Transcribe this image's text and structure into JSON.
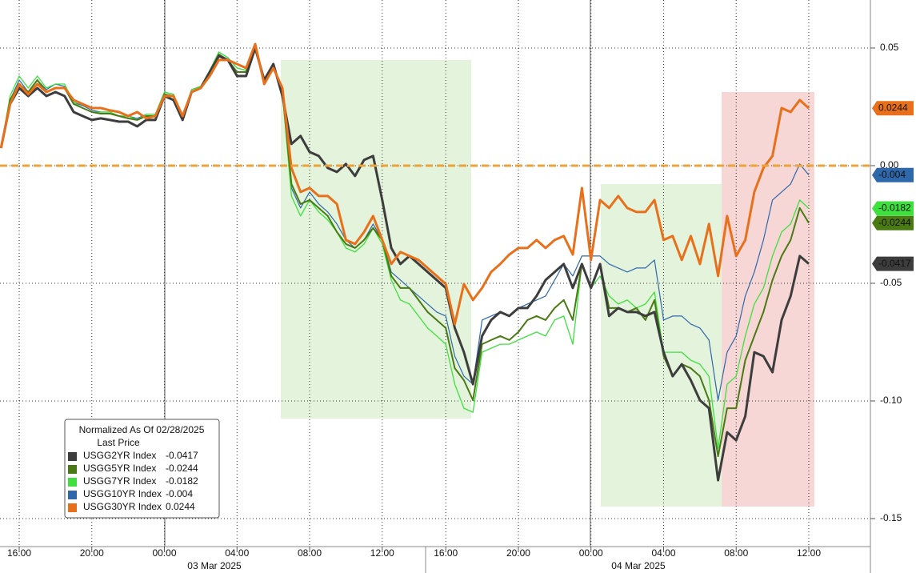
{
  "chart_data": {
    "type": "line",
    "categories": [
      null,
      null,
      "16:00",
      null,
      null,
      null,
      null,
      null,
      null,
      null,
      "20:00",
      null,
      null,
      null,
      null,
      null,
      null,
      null,
      "00:00",
      null,
      null,
      null,
      null,
      null,
      null,
      null,
      "04:00",
      null,
      null,
      null,
      null,
      null,
      null,
      null,
      "08:00",
      null,
      null,
      null,
      null,
      null,
      null,
      null,
      "12:00",
      null,
      null,
      null,
      null,
      null,
      null,
      "16:00",
      null,
      null,
      null,
      null,
      null,
      null,
      null,
      "20:00",
      null,
      null,
      null,
      null,
      null,
      null,
      null,
      "00:00",
      null,
      null,
      null,
      null,
      null,
      null,
      null,
      "04:00",
      null,
      null,
      null,
      null,
      null,
      null,
      null,
      "08:00",
      null,
      null,
      null,
      null,
      null,
      null,
      null,
      "12:00"
    ],
    "x_groups": [
      "03 Mar 2025",
      "04 Mar 2025"
    ],
    "ylim": [
      -0.1619,
      0.0704
    ],
    "yticks": [
      0.05,
      {
        "value": 0,
        "label": "0.00"
      },
      -0.05,
      {
        "value": -0.1,
        "label": "-0.10"
      },
      {
        "value": -0.15,
        "label": "-0.15"
      }
    ],
    "grid": true,
    "reference_line": {
      "value": 0,
      "color": "#eba33a"
    },
    "legend": {
      "title": "Normalized As Of 02/28/2025",
      "subtitle": "Last Price",
      "position": "lower left"
    },
    "series": [
      {
        "name": "USGG2YR Index",
        "color": "#3d3d3d",
        "values": [
          0.0075,
          0.0262,
          0.033,
          0.0296,
          0.033,
          0.0296,
          0.0313,
          0.0296,
          0.0228,
          0.0211,
          0.0194,
          0.0201,
          0.0194,
          0.0187,
          0.0187,
          0.0167,
          0.0194,
          0.0194,
          0.0296,
          0.0279,
          0.0194,
          0.0313,
          0.033,
          0.0398,
          0.0466,
          0.0449,
          0.0381,
          0.0381,
          0.05,
          0.0364,
          0.0432,
          0.0296,
          0.0092,
          0.0126,
          0.0058,
          0.0041,
          -0.001,
          -0.0027,
          0.0007,
          -0.0044,
          0.0024,
          0.0041,
          -0.0146,
          -0.035,
          -0.0418,
          -0.0384,
          -0.0418,
          -0.0452,
          -0.0486,
          -0.052,
          -0.069,
          -0.0793,
          -0.0929,
          -0.0724,
          -0.0656,
          -0.0622,
          -0.0639,
          -0.0605,
          -0.0605,
          -0.0554,
          -0.0486,
          -0.0452,
          -0.0418,
          -0.052,
          -0.0418,
          -0.052,
          -0.0418,
          -0.0639,
          -0.0605,
          -0.0622,
          -0.0622,
          -0.0639,
          -0.0622,
          -0.0793,
          -0.0895,
          -0.0844,
          -0.0912,
          -0.0997,
          -0.1031,
          -0.1337,
          -0.1133,
          -0.1167,
          -0.1065,
          -0.0793,
          -0.081,
          -0.0878,
          -0.0656,
          -0.0554,
          -0.0384,
          -0.0417
        ]
      },
      {
        "name": "USGG5YR Index",
        "color": "#4a7a14",
        "values": [
          0.0075,
          0.0279,
          0.0347,
          0.0313,
          0.0364,
          0.0313,
          0.033,
          0.033,
          0.0262,
          0.0245,
          0.0228,
          0.0221,
          0.0221,
          0.0211,
          0.0201,
          0.0194,
          0.0211,
          0.0211,
          0.0303,
          0.0296,
          0.0211,
          0.0313,
          0.033,
          0.0398,
          0.0473,
          0.0449,
          0.0398,
          0.0398,
          0.05,
          0.0364,
          0.0432,
          0.0313,
          -0.0078,
          -0.0163,
          -0.0146,
          -0.018,
          -0.0214,
          -0.0282,
          -0.0333,
          -0.035,
          -0.0316,
          -0.0265,
          -0.0316,
          -0.0469,
          -0.052,
          -0.052,
          -0.0571,
          -0.0622,
          -0.0656,
          -0.069,
          -0.0861,
          -0.0912,
          -0.0997,
          -0.0759,
          -0.0741,
          -0.0724,
          -0.0741,
          -0.0707,
          -0.0656,
          -0.0639,
          -0.0656,
          -0.0605,
          -0.0571,
          -0.0656,
          -0.0418,
          -0.052,
          -0.0418,
          -0.0605,
          -0.0605,
          -0.0622,
          -0.0605,
          -0.0656,
          -0.0571,
          -0.081,
          -0.0895,
          -0.0844,
          -0.0861,
          -0.0895,
          -0.0997,
          -0.1235,
          -0.1031,
          -0.1031,
          -0.0827,
          -0.0724,
          -0.0622,
          -0.0486,
          -0.0384,
          -0.0316,
          -0.018,
          -0.0244
        ]
      },
      {
        "name": "USGG7YR Index",
        "color": "#3ee03e",
        "values": [
          0.0075,
          0.0296,
          0.0381,
          0.033,
          0.0381,
          0.033,
          0.0347,
          0.0347,
          0.0269,
          0.0245,
          0.0228,
          0.0228,
          0.0228,
          0.0211,
          0.0211,
          0.0194,
          0.0218,
          0.0218,
          0.0313,
          0.0303,
          0.0211,
          0.0323,
          0.0337,
          0.0405,
          0.0483,
          0.0459,
          0.0415,
          0.0405,
          0.05,
          0.0371,
          0.0425,
          0.0313,
          -0.0129,
          -0.0214,
          -0.0146,
          -0.0197,
          -0.0231,
          -0.0282,
          -0.035,
          -0.0367,
          -0.0333,
          -0.0265,
          -0.0333,
          -0.0486,
          -0.0571,
          -0.0588,
          -0.0639,
          -0.069,
          -0.0724,
          -0.0759,
          -0.0929,
          -0.1031,
          -0.1048,
          -0.0793,
          -0.0776,
          -0.0759,
          -0.0759,
          -0.0741,
          -0.0724,
          -0.0707,
          -0.0724,
          -0.0656,
          -0.0639,
          -0.0759,
          -0.0418,
          -0.052,
          -0.0469,
          -0.0554,
          -0.0588,
          -0.0571,
          -0.0605,
          -0.0588,
          -0.0537,
          -0.0793,
          -0.0793,
          -0.0793,
          -0.0827,
          -0.0844,
          -0.0895,
          -0.1201,
          -0.0929,
          -0.0895,
          -0.0724,
          -0.0588,
          -0.052,
          -0.0384,
          -0.0282,
          -0.0248,
          -0.0146,
          -0.0182
        ]
      },
      {
        "name": "USGG10YR Index",
        "color": "#2f68aa",
        "values": [
          0.0075,
          0.0279,
          0.0364,
          0.0313,
          0.0364,
          0.0323,
          0.0347,
          0.0337,
          0.0269,
          0.0255,
          0.0235,
          0.0228,
          0.0228,
          0.0211,
          0.0211,
          0.0201,
          0.0218,
          0.0218,
          0.0313,
          0.0303,
          0.0211,
          0.0323,
          0.0337,
          0.0405,
          0.0483,
          0.0459,
          0.0415,
          0.0405,
          0.0507,
          0.0371,
          0.0432,
          0.0323,
          -0.0095,
          -0.018,
          -0.0112,
          -0.0163,
          -0.0197,
          -0.0248,
          -0.0316,
          -0.035,
          -0.0316,
          -0.0248,
          -0.0316,
          -0.0452,
          -0.0486,
          -0.052,
          -0.0554,
          -0.0588,
          -0.0622,
          -0.0639,
          -0.081,
          -0.0895,
          -0.0929,
          -0.0656,
          -0.0639,
          -0.0622,
          -0.0639,
          -0.0605,
          -0.0588,
          -0.0571,
          -0.0554,
          -0.0486,
          -0.0418,
          -0.0469,
          -0.0384,
          -0.0384,
          -0.0384,
          -0.0418,
          -0.0435,
          -0.0452,
          -0.0435,
          -0.0435,
          -0.0401,
          -0.0656,
          -0.0639,
          -0.0639,
          -0.0673,
          -0.069,
          -0.0741,
          -0.0997,
          -0.0793,
          -0.0724,
          -0.0554,
          -0.0452,
          -0.0316,
          -0.0146,
          -0.0112,
          -0.0078,
          0.0007,
          -0.004
        ]
      },
      {
        "name": "USGG30YR Index",
        "color": "#e8701a",
        "values": [
          0.0075,
          0.0262,
          0.0347,
          0.0303,
          0.0347,
          0.0313,
          0.033,
          0.033,
          0.0279,
          0.0262,
          0.0245,
          0.0245,
          0.0235,
          0.0228,
          0.0211,
          0.0228,
          0.0201,
          0.0211,
          0.0296,
          0.0296,
          0.0211,
          0.0313,
          0.033,
          0.0381,
          0.0449,
          0.0449,
          0.0432,
          0.0415,
          0.0517,
          0.0347,
          0.0415,
          0.033,
          -0.001,
          -0.0112,
          -0.0095,
          -0.0129,
          -0.0129,
          -0.0163,
          -0.0316,
          -0.0333,
          -0.0282,
          -0.0214,
          -0.0316,
          -0.0418,
          -0.0367,
          -0.0384,
          -0.0401,
          -0.0435,
          -0.0469,
          -0.0503,
          -0.0673,
          -0.0503,
          -0.0571,
          -0.052,
          -0.0452,
          -0.0418,
          -0.0378,
          -0.035,
          -0.035,
          -0.0316,
          -0.035,
          -0.0316,
          -0.0299,
          -0.0378,
          -0.0095,
          -0.0401,
          -0.0146,
          -0.018,
          -0.0129,
          -0.018,
          -0.0197,
          -0.0197,
          -0.0146,
          -0.0316,
          -0.0299,
          -0.0401,
          -0.0299,
          -0.0418,
          -0.0248,
          -0.0469,
          -0.0214,
          -0.0384,
          -0.0316,
          -0.0112,
          -0.001,
          0.0041,
          0.0245,
          0.0228,
          0.0279,
          0.0244
        ]
      }
    ]
  }
}
